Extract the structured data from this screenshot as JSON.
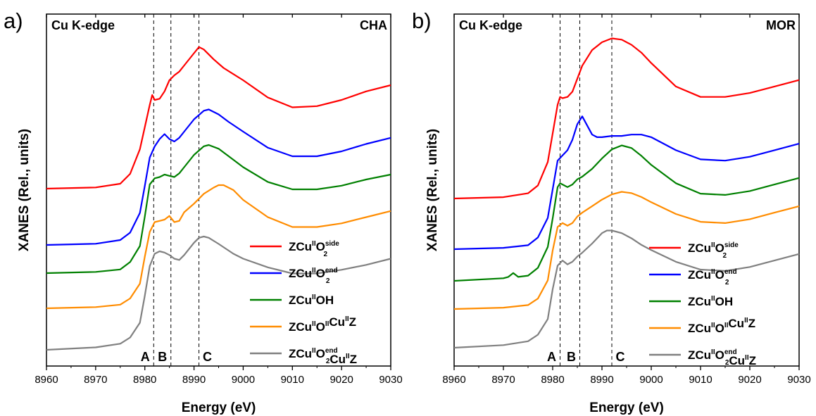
{
  "chart_data": [
    {
      "type": "line",
      "panel_label": "a)",
      "edge_label": "Cu K-edge",
      "framework_label": "CHA",
      "xlabel": "Energy (eV)",
      "ylabel": "XANES (Rel., units)",
      "xlim": [
        8960,
        9030
      ],
      "x_ticks": [
        "8960",
        "8970",
        "8980",
        "8990",
        "9000",
        "9010",
        "9020",
        "9030"
      ],
      "y_ticks_shown": false,
      "grid": false,
      "legend_position": "bottom-right",
      "markers": [
        {
          "label": "A",
          "x": 8981.8
        },
        {
          "label": "B",
          "x": 8985.3
        },
        {
          "label": "C",
          "x": 8991.0
        }
      ],
      "series": [
        {
          "name": "ZCu^II O2^side",
          "color": "#ff0000",
          "x": [
            8960,
            8970,
            8975,
            8977,
            8979,
            8980,
            8981,
            8981.5,
            8982,
            8983,
            8984,
            8985,
            8986,
            8987,
            8988,
            8990,
            8991,
            8992,
            8994,
            8996,
            8998,
            9000,
            9005,
            9010,
            9015,
            9020,
            9025,
            9030
          ],
          "y": [
            0.0,
            0.01,
            0.04,
            0.12,
            0.32,
            0.5,
            0.68,
            0.76,
            0.72,
            0.73,
            0.79,
            0.88,
            0.92,
            0.95,
            1.0,
            1.1,
            1.15,
            1.13,
            1.05,
            0.98,
            0.93,
            0.88,
            0.74,
            0.66,
            0.67,
            0.72,
            0.79,
            0.84
          ]
        },
        {
          "name": "ZCu^II O2^end",
          "color": "#0000ff",
          "x": [
            8960,
            8970,
            8975,
            8977,
            8979,
            8980,
            8981,
            8982,
            8983,
            8984,
            8985,
            8986,
            8987,
            8988,
            8990,
            8992,
            8993,
            8995,
            8997,
            9000,
            9005,
            9010,
            9015,
            9020,
            9025,
            9030
          ],
          "y": [
            0.0,
            0.01,
            0.04,
            0.1,
            0.26,
            0.48,
            0.71,
            0.8,
            0.86,
            0.9,
            0.86,
            0.84,
            0.87,
            0.92,
            1.02,
            1.09,
            1.1,
            1.06,
            1.0,
            0.92,
            0.79,
            0.72,
            0.72,
            0.76,
            0.82,
            0.87
          ]
        },
        {
          "name": "ZCu^II OH",
          "color": "#008000",
          "x": [
            8960,
            8970,
            8975,
            8977,
            8979,
            8980,
            8981,
            8982,
            8983,
            8984,
            8985,
            8986,
            8987,
            8988,
            8990,
            8992,
            8993,
            8995,
            8998,
            9000,
            9005,
            9010,
            9015,
            9020,
            9025,
            9030
          ],
          "y": [
            0.0,
            0.01,
            0.03,
            0.09,
            0.22,
            0.46,
            0.72,
            0.77,
            0.78,
            0.8,
            0.79,
            0.78,
            0.81,
            0.86,
            0.96,
            1.03,
            1.04,
            1.01,
            0.92,
            0.86,
            0.74,
            0.68,
            0.68,
            0.71,
            0.76,
            0.8
          ]
        },
        {
          "name": "ZCu^II O^II Cu^II Z",
          "color": "#ff8c00",
          "x": [
            8960,
            8970,
            8975,
            8977,
            8979,
            8980,
            8981,
            8982,
            8983,
            8984,
            8985,
            8986,
            8987,
            8988,
            8990,
            8992,
            8994,
            8995,
            8996,
            8998,
            9000,
            9005,
            9010,
            9015,
            9020,
            9025,
            9030
          ],
          "y": [
            0.0,
            0.01,
            0.03,
            0.08,
            0.2,
            0.42,
            0.62,
            0.7,
            0.71,
            0.72,
            0.75,
            0.7,
            0.71,
            0.78,
            0.85,
            0.93,
            0.98,
            1.0,
            1.0,
            0.96,
            0.88,
            0.74,
            0.66,
            0.66,
            0.69,
            0.74,
            0.79
          ]
        },
        {
          "name": "ZCu^II O2^end Cu^II Z",
          "color": "#808080",
          "x": [
            8960,
            8970,
            8975,
            8977,
            8979,
            8980,
            8981,
            8982,
            8983,
            8984,
            8985,
            8986,
            8987,
            8988,
            8990,
            8991,
            8992,
            8993,
            8995,
            8998,
            9000,
            9005,
            9010,
            9015,
            9020,
            9025,
            9030
          ],
          "y": [
            0.0,
            0.02,
            0.05,
            0.1,
            0.22,
            0.44,
            0.68,
            0.78,
            0.8,
            0.79,
            0.77,
            0.74,
            0.73,
            0.77,
            0.87,
            0.91,
            0.92,
            0.91,
            0.86,
            0.78,
            0.74,
            0.67,
            0.62,
            0.62,
            0.65,
            0.69,
            0.74
          ]
        }
      ]
    },
    {
      "type": "line",
      "panel_label": "b)",
      "edge_label": "Cu K-edge",
      "framework_label": "MOR",
      "xlabel": "Energy (eV)",
      "ylabel": "XANES (Rel., units)",
      "xlim": [
        8960,
        9030
      ],
      "x_ticks": [
        "8960",
        "8970",
        "8980",
        "8990",
        "9000",
        "9010",
        "9020",
        "9030"
      ],
      "y_ticks_shown": false,
      "grid": false,
      "legend_position": "bottom-right",
      "markers": [
        {
          "label": "A",
          "x": 8981.5
        },
        {
          "label": "B",
          "x": 8985.5
        },
        {
          "label": "C",
          "x": 8992.0
        }
      ],
      "series": [
        {
          "name": "ZCu^II O2^side",
          "color": "#ff0000",
          "x": [
            8960,
            8970,
            8975,
            8977,
            8979,
            8980,
            8981,
            8981.5,
            8982,
            8983,
            8984,
            8985,
            8986,
            8988,
            8990,
            8992,
            8994,
            8996,
            8998,
            9000,
            9005,
            9010,
            9015,
            9020,
            9025,
            9030
          ],
          "y": [
            0.0,
            0.01,
            0.04,
            0.1,
            0.28,
            0.5,
            0.72,
            0.78,
            0.77,
            0.78,
            0.82,
            0.92,
            1.02,
            1.14,
            1.2,
            1.23,
            1.22,
            1.18,
            1.12,
            1.04,
            0.86,
            0.78,
            0.78,
            0.81,
            0.86,
            0.91
          ]
        },
        {
          "name": "ZCu^II O2^end",
          "color": "#0000ff",
          "x": [
            8960,
            8970,
            8975,
            8977,
            8979,
            8980,
            8981,
            8982,
            8983,
            8984,
            8985,
            8986,
            8987,
            8988,
            8989,
            8990,
            8992,
            8994,
            8996,
            8998,
            9000,
            9005,
            9010,
            9015,
            9020,
            9025,
            9030
          ],
          "y": [
            0.0,
            0.01,
            0.03,
            0.09,
            0.24,
            0.46,
            0.68,
            0.72,
            0.76,
            0.84,
            0.96,
            1.02,
            0.95,
            0.88,
            0.86,
            0.86,
            0.87,
            0.87,
            0.88,
            0.88,
            0.86,
            0.76,
            0.69,
            0.68,
            0.71,
            0.76,
            0.81
          ]
        },
        {
          "name": "ZCu^II OH",
          "color": "#008000",
          "x": [
            8960,
            8970,
            8971,
            8972,
            8973,
            8975,
            8977,
            8979,
            8980,
            8981,
            8981.5,
            8982,
            8983,
            8984,
            8985,
            8986,
            8988,
            8990,
            8992,
            8994,
            8996,
            8998,
            9000,
            9005,
            9010,
            9015,
            9020,
            9025,
            9030
          ],
          "y": [
            0.0,
            0.02,
            0.03,
            0.06,
            0.03,
            0.04,
            0.1,
            0.26,
            0.48,
            0.72,
            0.75,
            0.74,
            0.72,
            0.74,
            0.78,
            0.8,
            0.86,
            0.94,
            1.01,
            1.04,
            1.02,
            0.96,
            0.89,
            0.75,
            0.67,
            0.66,
            0.69,
            0.74,
            0.79
          ]
        },
        {
          "name": "ZCu^II O^II Cu^II Z",
          "color": "#ff8c00",
          "x": [
            8960,
            8970,
            8975,
            8977,
            8979,
            8980,
            8981,
            8982,
            8983,
            8984,
            8985,
            8986,
            8988,
            8990,
            8992,
            8994,
            8996,
            8998,
            9000,
            9005,
            9010,
            9015,
            9020,
            9025,
            9030
          ],
          "y": [
            0.0,
            0.01,
            0.03,
            0.08,
            0.22,
            0.45,
            0.63,
            0.66,
            0.64,
            0.66,
            0.71,
            0.74,
            0.79,
            0.84,
            0.88,
            0.9,
            0.89,
            0.86,
            0.82,
            0.73,
            0.67,
            0.66,
            0.69,
            0.74,
            0.79
          ]
        },
        {
          "name": "ZCu^II O2^end Cu^II Z",
          "color": "#808080",
          "x": [
            8960,
            8970,
            8975,
            8977,
            8979,
            8980,
            8981,
            8982,
            8983,
            8984,
            8985,
            8986,
            8988,
            8990,
            8991,
            8992,
            8994,
            8996,
            8998,
            9000,
            9005,
            9010,
            9015,
            9020,
            9025,
            9030
          ],
          "y": [
            0.0,
            0.02,
            0.05,
            0.1,
            0.22,
            0.45,
            0.63,
            0.67,
            0.64,
            0.66,
            0.7,
            0.73,
            0.8,
            0.88,
            0.9,
            0.9,
            0.88,
            0.84,
            0.79,
            0.75,
            0.66,
            0.6,
            0.59,
            0.62,
            0.67,
            0.72
          ]
        }
      ]
    }
  ],
  "legend": [
    {
      "base": "ZCu",
      "s1": "II",
      "base2": "O",
      "s2": "side",
      "sub": "2",
      "tail": ""
    },
    {
      "base": "ZCu",
      "s1": "II",
      "base2": "O",
      "s2": "end",
      "sub": "2",
      "tail": ""
    },
    {
      "base": "ZCu",
      "s1": "II",
      "base2": "OH",
      "s2": "",
      "sub": "",
      "tail": ""
    },
    {
      "base": "ZCu",
      "s1": "II",
      "base2": "O",
      "s2": "II",
      "sub": "",
      "tail": "Cu",
      "s3": "II",
      "tail2": "Z"
    },
    {
      "base": "ZCu",
      "s1": "II",
      "base2": "O",
      "s2": "end",
      "sub": "2",
      "tail": "Cu",
      "s3": "II",
      "tail2": "Z"
    }
  ]
}
